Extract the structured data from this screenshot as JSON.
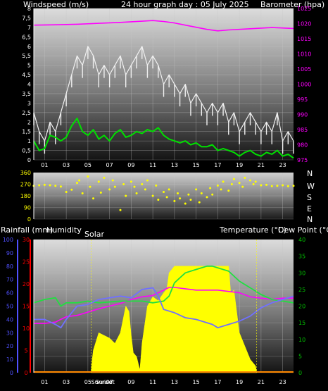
{
  "header": {
    "left_label": "Windspeed (m/s)",
    "title": "24 hour graph day : 05 July 2025",
    "right_label": "Barometer (hpa)"
  },
  "direction_labels": [
    "N",
    "W",
    "S",
    "E",
    "N"
  ],
  "bottom_header": {
    "rain_label": "Rainfall (mm)",
    "humidity_label": "Humidity",
    "solar_label": "Solar",
    "temperature_label": "Temperature (°C)",
    "dewpoint_label": "Dew Point (°C)"
  },
  "x_ticks": [
    "01",
    "03",
    "05",
    "07",
    "09",
    "11",
    "13",
    "15",
    "17",
    "19",
    "21",
    "23"
  ],
  "sun_labels": {
    "sunrise": "Sunrise",
    "sunset": "Sunset"
  },
  "colors": {
    "wind_gust": "#f0f0f0",
    "wind_avg": "#00e000",
    "barometer": "#ff00ff",
    "direction": "#ffff00",
    "humidity": "#ff00ff",
    "solar": "#ffff00",
    "temperature": "#20e040",
    "dewpoint": "#7070ff",
    "rain_axis": "#ff0000",
    "humidity_axis": "#5050ff",
    "temp_axis": "#00c000"
  },
  "chart_data": [
    {
      "type": "line",
      "id": "wind-baro",
      "x_range": [
        0,
        24
      ],
      "y_left_ticks": [
        "0",
        "0,5",
        "1",
        "1,5",
        "2",
        "2,5",
        "3",
        "3,5",
        "4",
        "4,5",
        "5",
        "5,5",
        "6",
        "6,5",
        "7",
        "7,5",
        "8"
      ],
      "y_left_range": [
        0,
        8
      ],
      "y_right_ticks": [
        "975",
        "980",
        "985",
        "990",
        "995",
        "1000",
        "1005",
        "1010",
        "1015",
        "1020",
        "1025"
      ],
      "y_right_range": [
        975,
        1025
      ],
      "series": [
        {
          "key": "gust",
          "axis": "left",
          "x": [
            0,
            0.5,
            1,
            1.5,
            2,
            2.5,
            3,
            3.5,
            4,
            4.5,
            5,
            5.5,
            6,
            6.5,
            7,
            7.5,
            8,
            8.5,
            9,
            9.5,
            10,
            10.5,
            11,
            11.5,
            12,
            12.5,
            13,
            13.5,
            14,
            14.5,
            15,
            15.5,
            16,
            16.5,
            17,
            17.5,
            18,
            18.5,
            19,
            19.5,
            20,
            20.5,
            21,
            21.5,
            22,
            22.5,
            23,
            23.5,
            24
          ],
          "values": [
            2.5,
            1.5,
            1.0,
            2.0,
            1.5,
            2.5,
            3.5,
            4.5,
            5.5,
            5.0,
            6.0,
            5.5,
            4.5,
            5.0,
            4.5,
            5.0,
            5.5,
            4.5,
            5.0,
            5.5,
            6.0,
            5.0,
            5.5,
            5.0,
            4.0,
            4.5,
            4.0,
            3.5,
            4.0,
            3.0,
            3.5,
            3.0,
            2.5,
            3.0,
            2.5,
            3.0,
            2.0,
            2.5,
            1.5,
            2.0,
            2.5,
            2.0,
            1.5,
            2.0,
            1.5,
            2.5,
            1.0,
            1.5,
            1.0
          ]
        },
        {
          "key": "avg",
          "axis": "left",
          "x": [
            0,
            0.5,
            1,
            1.5,
            2,
            2.5,
            3,
            3.5,
            4,
            4.5,
            5,
            5.5,
            6,
            6.5,
            7,
            7.5,
            8,
            8.5,
            9,
            9.5,
            10,
            10.5,
            11,
            11.5,
            12,
            12.5,
            13,
            13.5,
            14,
            14.5,
            15,
            15.5,
            16,
            16.5,
            17,
            17.5,
            18,
            18.5,
            19,
            19.5,
            20,
            20.5,
            21,
            21.5,
            22,
            22.5,
            23,
            23.5,
            24
          ],
          "values": [
            1.0,
            0.5,
            0.6,
            1.3,
            1.2,
            1.0,
            1.2,
            1.8,
            2.2,
            1.5,
            1.3,
            1.6,
            1.1,
            1.3,
            1.0,
            1.4,
            1.6,
            1.2,
            1.3,
            1.5,
            1.4,
            1.6,
            1.5,
            1.7,
            1.3,
            1.1,
            1.0,
            0.9,
            1.0,
            0.8,
            0.9,
            0.7,
            0.7,
            0.8,
            0.5,
            0.6,
            0.5,
            0.4,
            0.2,
            0.4,
            0.5,
            0.3,
            0.2,
            0.4,
            0.3,
            0.5,
            0.2,
            0.3,
            0.1
          ]
        },
        {
          "key": "baro",
          "axis": "right",
          "x": [
            0,
            2,
            4,
            6,
            8,
            10,
            11,
            12,
            13,
            14,
            16,
            17,
            18,
            20,
            22,
            24
          ],
          "values": [
            1019.5,
            1019.6,
            1019.8,
            1020.1,
            1020.4,
            1020.8,
            1021.0,
            1020.7,
            1020.2,
            1019.5,
            1018.1,
            1017.6,
            1017.9,
            1018.3,
            1018.7,
            1018.4
          ]
        }
      ]
    },
    {
      "type": "scatter",
      "id": "wind-direction",
      "x_range": [
        0,
        24
      ],
      "y_ticks": [
        "0",
        "90",
        "180",
        "270",
        "360"
      ],
      "y_range": [
        0,
        360
      ],
      "series": [
        {
          "key": "direction",
          "x": [
            0,
            0.5,
            1,
            1.5,
            2,
            2.5,
            3,
            3.5,
            4,
            4.2,
            4.5,
            5,
            5.2,
            5.5,
            6,
            6.2,
            6.5,
            7,
            7.3,
            7.5,
            8,
            8.3,
            8.5,
            9,
            9.3,
            9.5,
            10,
            10.3,
            10.5,
            11,
            11.3,
            11.5,
            12,
            12.3,
            12.5,
            13,
            13.3,
            13.5,
            14,
            14.3,
            14.5,
            15,
            15.3,
            15.5,
            16,
            16.3,
            16.5,
            17,
            17.3,
            17.5,
            18,
            18.3,
            18.5,
            19,
            19.3,
            19.5,
            20,
            20.3,
            20.5,
            21,
            21.5,
            22,
            22.5,
            23,
            23.5,
            24
          ],
          "values": [
            258,
            262,
            265,
            262,
            258,
            252,
            210,
            228,
            280,
            300,
            200,
            330,
            250,
            160,
            290,
            205,
            320,
            230,
            300,
            250,
            70,
            270,
            180,
            290,
            250,
            200,
            270,
            230,
            300,
            180,
            260,
            150,
            210,
            170,
            230,
            140,
            200,
            160,
            120,
            190,
            150,
            230,
            130,
            200,
            170,
            240,
            190,
            260,
            230,
            290,
            220,
            270,
            310,
            280,
            250,
            320,
            300,
            270,
            290,
            262,
            265,
            256,
            258,
            262,
            255,
            258
          ]
        }
      ]
    },
    {
      "type": "area",
      "id": "temp-solar",
      "x_range": [
        0,
        24
      ],
      "y_rain_ticks": [
        "0",
        "5",
        "10",
        "15",
        "20",
        "25",
        "30"
      ],
      "y_rain_range": [
        0,
        30
      ],
      "y_humidity_ticks": [
        "0",
        "10",
        "20",
        "30",
        "40",
        "50",
        "60",
        "70",
        "80",
        "90",
        "100"
      ],
      "y_humidity_range": [
        0,
        100
      ],
      "y_temp_ticks": [
        "0",
        "5",
        "10",
        "15",
        "20",
        "25",
        "30",
        "35",
        "40"
      ],
      "y_temp_range": [
        0,
        40
      ],
      "series": [
        {
          "key": "humidity",
          "axis": "humidity",
          "x": [
            0,
            1,
            2,
            2.5,
            3,
            4,
            6,
            7,
            8,
            9,
            10,
            11,
            12,
            12.5,
            13,
            14,
            15,
            16,
            17,
            18,
            19,
            20,
            21,
            22,
            23,
            24
          ],
          "values": [
            37,
            37,
            38,
            40,
            42,
            43,
            48,
            50,
            52,
            55,
            57,
            58,
            62,
            64,
            64,
            63,
            62,
            62,
            62,
            61,
            60,
            57,
            56,
            55,
            56,
            56
          ]
        },
        {
          "key": "solar",
          "axis": "humidity",
          "x": [
            5.3,
            5.4,
            5.5,
            6,
            6.5,
            7,
            7.5,
            8,
            8.2,
            8.5,
            8.8,
            9,
            9.2,
            9.5,
            9.8,
            10,
            10.5,
            11,
            11.5,
            12,
            12.3,
            12.5,
            13,
            14,
            15,
            16,
            17,
            17.5,
            18,
            18.2,
            18.5,
            19,
            19.5,
            20,
            20.5,
            20.6
          ],
          "values": [
            0,
            10,
            17,
            30,
            28,
            26,
            22,
            30,
            38,
            50,
            46,
            28,
            15,
            12,
            2,
            22,
            50,
            57,
            54,
            60,
            63,
            75,
            80,
            80,
            80,
            80,
            80,
            80,
            80,
            60,
            62,
            30,
            20,
            10,
            5,
            0
          ]
        },
        {
          "key": "temperature",
          "axis": "temp",
          "x": [
            0,
            1,
            2,
            2.5,
            3,
            4,
            5,
            6,
            8,
            10,
            11,
            12,
            12.5,
            13,
            14,
            15,
            16,
            16.5,
            17,
            18,
            19,
            20,
            21,
            22,
            23,
            24
          ],
          "values": [
            21,
            22,
            22.5,
            20,
            21,
            21,
            21.5,
            21,
            21.5,
            21.5,
            21,
            21.5,
            23,
            27,
            30,
            31,
            32,
            32,
            31.5,
            30.5,
            27.5,
            25.5,
            23.5,
            22,
            21.5,
            21
          ]
        },
        {
          "key": "dewpoint",
          "axis": "temp",
          "x": [
            0,
            1,
            2,
            2.5,
            3,
            4,
            5,
            6,
            8,
            9,
            10,
            11,
            11.5,
            12,
            13,
            14,
            15,
            16,
            16.5,
            17,
            18,
            19,
            20,
            21,
            22,
            23,
            24
          ],
          "values": [
            16,
            16,
            14.5,
            13.5,
            16,
            20,
            20.5,
            22,
            23,
            22.5,
            25,
            25.5,
            23,
            19,
            18,
            16.5,
            16,
            15,
            14.5,
            13.5,
            14.5,
            15.5,
            17,
            19.5,
            21,
            22,
            23
          ]
        },
        {
          "key": "rainfall",
          "axis": "rain",
          "x": [
            0,
            24
          ],
          "values": [
            0,
            0
          ]
        }
      ]
    }
  ]
}
